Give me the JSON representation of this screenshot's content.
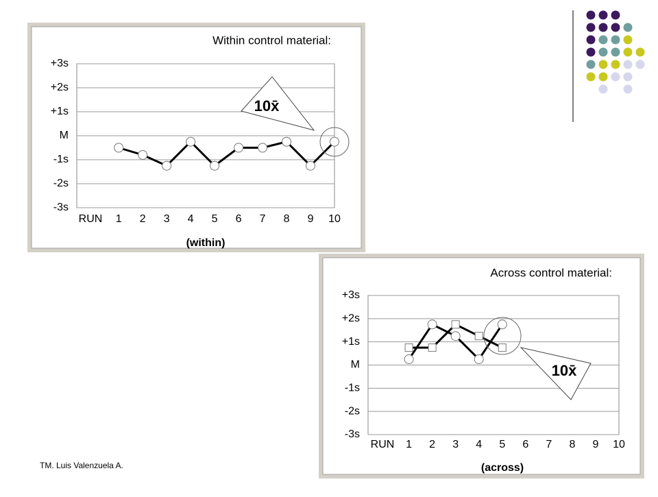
{
  "chart_data": [
    {
      "type": "line",
      "title": "Within control material:",
      "x_axis_label": "RUN",
      "xlabel": "(within)",
      "annotation": "10x̄",
      "x": [
        1,
        2,
        3,
        4,
        5,
        6,
        7,
        8,
        9,
        10
      ],
      "series": [
        {
          "color": "#000000",
          "marker": "circle",
          "values": [
            -0.5,
            -0.8,
            -1.25,
            -0.25,
            -1.25,
            -0.5,
            -0.5,
            -0.25,
            -1.25,
            -0.25
          ]
        }
      ],
      "xlim": [
        -0.75,
        10
      ],
      "xticks": [
        1,
        2,
        3,
        4,
        5,
        6,
        7,
        8,
        9,
        10
      ],
      "ylim": [
        -3,
        3
      ],
      "yticks": [
        {
          "value": 3,
          "label": "+3s"
        },
        {
          "value": 2,
          "label": "+2s"
        },
        {
          "value": 1,
          "label": "+1s"
        },
        {
          "value": 0,
          "label": "M"
        },
        {
          "value": -1,
          "label": "-1s"
        },
        {
          "value": -2,
          "label": "-2s"
        },
        {
          "value": -3,
          "label": "-3s"
        }
      ],
      "grid": true
    },
    {
      "type": "line",
      "title": "Across control material:",
      "x_axis_label": "RUN",
      "xlabel": "(across)",
      "annotation": "10x̄",
      "x": [
        1,
        2,
        3,
        4,
        5
      ],
      "series": [
        {
          "color": "#000000",
          "marker": "circle",
          "values": [
            0.25,
            1.75,
            1.25,
            0.25,
            1.75
          ]
        },
        {
          "color": "#000000",
          "marker": "square",
          "values": [
            0.75,
            0.75,
            1.75,
            1.25,
            0.75
          ]
        }
      ],
      "xlim": [
        -0.75,
        10
      ],
      "xticks": [
        1,
        2,
        3,
        4,
        5,
        6,
        7,
        8,
        9,
        10
      ],
      "ylim": [
        -3,
        3
      ],
      "yticks": [
        {
          "value": 3,
          "label": "+3s"
        },
        {
          "value": 2,
          "label": "+2s"
        },
        {
          "value": 1,
          "label": "+1s"
        },
        {
          "value": 0,
          "label": "M"
        },
        {
          "value": -1,
          "label": "-1s"
        },
        {
          "value": -2,
          "label": "-2s"
        },
        {
          "value": -3,
          "label": "-3s"
        }
      ],
      "grid": true
    }
  ],
  "footer": "TM. Luis Valenzuela A."
}
